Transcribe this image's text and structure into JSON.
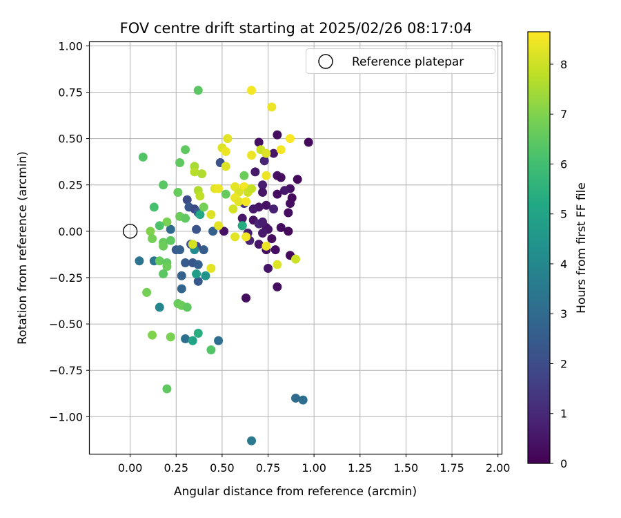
{
  "chart_data": {
    "type": "scatter",
    "title": "FOV centre drift starting at 2025/02/26 08:17:04",
    "xlabel": "Angular distance from reference (arcmin)",
    "ylabel": "Rotation from reference (arcmin)",
    "colorbar_label": "Hours from first FF file",
    "xlim": [
      -0.22,
      2.02
    ],
    "ylim": [
      -1.2,
      1.02
    ],
    "x_ticks": [
      0.0,
      0.25,
      0.5,
      0.75,
      1.0,
      1.25,
      1.5,
      1.75,
      2.0
    ],
    "x_tick_labels": [
      "0.00",
      "0.25",
      "0.50",
      "0.75",
      "1.00",
      "1.25",
      "1.50",
      "1.75",
      "2.00"
    ],
    "y_ticks": [
      1.0,
      0.75,
      0.5,
      0.25,
      0.0,
      -0.25,
      -0.5,
      -0.75,
      -1.0
    ],
    "y_tick_labels": [
      "1.00",
      "0.75",
      "0.50",
      "0.25",
      "0.00",
      "−0.25",
      "−0.50",
      "−0.75",
      "−1.00"
    ],
    "color_range": [
      0,
      8.65
    ],
    "color_ticks": [
      0,
      1,
      2,
      3,
      4,
      5,
      6,
      7,
      8
    ],
    "color_tick_labels": [
      "0",
      "1",
      "2",
      "3",
      "4",
      "5",
      "6",
      "7",
      "8"
    ],
    "colormap": "viridis",
    "grid": true,
    "legend": {
      "placement": "top-right",
      "entries": [
        "Reference platepar"
      ]
    },
    "reference_point": {
      "x": 0.0,
      "y": 0.0
    },
    "points": [
      [
        0.8,
        0.52,
        0.3
      ],
      [
        0.97,
        0.48,
        0.2
      ],
      [
        0.7,
        0.48,
        0.4
      ],
      [
        0.73,
        0.38,
        0.9
      ],
      [
        0.78,
        0.42,
        0.5
      ],
      [
        0.68,
        0.32,
        0.6
      ],
      [
        0.8,
        0.3,
        0.4
      ],
      [
        0.82,
        0.29,
        0.3
      ],
      [
        0.91,
        0.28,
        0.2
      ],
      [
        0.72,
        0.25,
        0.7
      ],
      [
        0.64,
        0.22,
        0.8
      ],
      [
        0.72,
        0.21,
        0.5
      ],
      [
        0.87,
        0.23,
        0.4
      ],
      [
        0.84,
        0.22,
        0.6
      ],
      [
        0.8,
        0.2,
        0.3
      ],
      [
        0.88,
        0.18,
        0.2
      ],
      [
        0.87,
        0.15,
        0.3
      ],
      [
        0.62,
        0.15,
        1.2
      ],
      [
        0.74,
        0.14,
        0.4
      ],
      [
        0.7,
        0.13,
        0.5
      ],
      [
        0.67,
        0.12,
        0.6
      ],
      [
        0.78,
        0.12,
        0.8
      ],
      [
        0.86,
        0.1,
        0.3
      ],
      [
        0.61,
        0.07,
        0.5
      ],
      [
        0.67,
        0.06,
        0.4
      ],
      [
        0.7,
        0.04,
        0.9
      ],
      [
        0.74,
        0.02,
        0.5
      ],
      [
        0.82,
        0.02,
        0.3
      ],
      [
        0.86,
        0.0,
        0.2
      ],
      [
        0.75,
        0.01,
        0.5
      ],
      [
        0.72,
        -0.01,
        0.6
      ],
      [
        0.51,
        0.0,
        0.4
      ],
      [
        0.64,
        -0.01,
        0.7
      ],
      [
        0.77,
        -0.04,
        0.3
      ],
      [
        0.65,
        -0.05,
        0.8
      ],
      [
        0.7,
        -0.07,
        0.5
      ],
      [
        0.74,
        -0.1,
        0.4
      ],
      [
        0.79,
        -0.1,
        0.3
      ],
      [
        0.87,
        -0.13,
        0.2
      ],
      [
        0.75,
        -0.2,
        0.5
      ],
      [
        0.8,
        -0.3,
        0.3
      ],
      [
        0.63,
        -0.36,
        0.3
      ],
      [
        0.61,
        0.03,
        0.9
      ],
      [
        0.72,
        0.05,
        0.7
      ],
      [
        0.49,
        0.37,
        2.1
      ],
      [
        0.31,
        0.17,
        2.0
      ],
      [
        0.32,
        0.13,
        2.3
      ],
      [
        0.35,
        0.12,
        2.0
      ],
      [
        0.37,
        0.1,
        2.5
      ],
      [
        0.36,
        0.01,
        2.2
      ],
      [
        0.33,
        -0.07,
        2.1
      ],
      [
        0.36,
        -0.08,
        1.9
      ],
      [
        0.25,
        -0.1,
        2.4
      ],
      [
        0.27,
        -0.1,
        2.6
      ],
      [
        0.4,
        -0.1,
        2.5
      ],
      [
        0.45,
        0.0,
        2.6
      ],
      [
        0.3,
        -0.17,
        2.5
      ],
      [
        0.34,
        -0.17,
        2.3
      ],
      [
        0.37,
        -0.18,
        2.6
      ],
      [
        0.28,
        -0.24,
        2.7
      ],
      [
        0.37,
        -0.27,
        2.4
      ],
      [
        0.28,
        -0.31,
        2.8
      ],
      [
        0.05,
        -0.16,
        3.3
      ],
      [
        0.13,
        -0.16,
        3.4
      ],
      [
        0.22,
        0.01,
        3.0
      ],
      [
        0.3,
        -0.58,
        3.2
      ],
      [
        0.48,
        -0.59,
        3.1
      ],
      [
        0.9,
        -0.9,
        3.0
      ],
      [
        0.94,
        -0.91,
        3.1
      ],
      [
        0.66,
        -1.13,
        3.5
      ],
      [
        0.35,
        -0.1,
        4.1
      ],
      [
        0.41,
        -0.24,
        4.4
      ],
      [
        0.36,
        -0.23,
        4.8
      ],
      [
        0.34,
        -0.59,
        5.0
      ],
      [
        0.37,
        -0.55,
        5.4
      ],
      [
        0.61,
        0.03,
        5.3
      ],
      [
        0.38,
        0.09,
        5.2
      ],
      [
        0.16,
        -0.41,
        3.9
      ],
      [
        0.13,
        0.13,
        6.1
      ],
      [
        0.18,
        0.25,
        6.4
      ],
      [
        0.07,
        0.4,
        6.3
      ],
      [
        0.3,
        0.44,
        6.5
      ],
      [
        0.37,
        0.76,
        6.4
      ],
      [
        0.27,
        0.37,
        6.5
      ],
      [
        0.26,
        0.21,
        6.6
      ],
      [
        0.4,
        0.13,
        6.8
      ],
      [
        0.27,
        0.08,
        6.7
      ],
      [
        0.3,
        0.07,
        6.5
      ],
      [
        0.2,
        0.05,
        6.9
      ],
      [
        0.16,
        0.03,
        6.2
      ],
      [
        0.11,
        0.0,
        7.0
      ],
      [
        0.12,
        -0.04,
        6.8
      ],
      [
        0.18,
        -0.06,
        6.6
      ],
      [
        0.22,
        -0.05,
        6.5
      ],
      [
        0.18,
        -0.08,
        6.7
      ],
      [
        0.16,
        -0.16,
        6.6
      ],
      [
        0.2,
        -0.17,
        6.5
      ],
      [
        0.2,
        -0.19,
        6.7
      ],
      [
        0.18,
        -0.23,
        6.4
      ],
      [
        0.09,
        -0.33,
        6.8
      ],
      [
        0.26,
        -0.39,
        6.6
      ],
      [
        0.28,
        -0.4,
        6.7
      ],
      [
        0.31,
        -0.41,
        6.5
      ],
      [
        0.12,
        -0.56,
        7.0
      ],
      [
        0.22,
        -0.57,
        6.9
      ],
      [
        0.44,
        -0.64,
        6.3
      ],
      [
        0.2,
        -0.85,
        6.5
      ],
      [
        0.52,
        0.2,
        6.6
      ],
      [
        0.62,
        0.3,
        6.7
      ],
      [
        0.37,
        0.22,
        7.6
      ],
      [
        0.66,
        0.76,
        8.5
      ],
      [
        0.77,
        0.67,
        8.4
      ],
      [
        0.53,
        0.5,
        8.3
      ],
      [
        0.5,
        0.45,
        8.2
      ],
      [
        0.52,
        0.43,
        8.4
      ],
      [
        0.71,
        0.44,
        8.0
      ],
      [
        0.74,
        0.42,
        8.2
      ],
      [
        0.82,
        0.44,
        8.5
      ],
      [
        0.87,
        0.5,
        8.6
      ],
      [
        0.66,
        0.41,
        8.4
      ],
      [
        0.52,
        0.35,
        8.2
      ],
      [
        0.35,
        0.35,
        7.5
      ],
      [
        0.35,
        0.32,
        7.7
      ],
      [
        0.39,
        0.31,
        7.6
      ],
      [
        0.74,
        0.3,
        8.4
      ],
      [
        0.57,
        0.24,
        8.3
      ],
      [
        0.62,
        0.24,
        8.5
      ],
      [
        0.46,
        0.23,
        8.3
      ],
      [
        0.48,
        0.23,
        8.4
      ],
      [
        0.59,
        0.21,
        8.2
      ],
      [
        0.64,
        0.21,
        8.0
      ],
      [
        0.66,
        0.23,
        7.9
      ],
      [
        0.57,
        0.18,
        8.4
      ],
      [
        0.59,
        0.16,
        8.3
      ],
      [
        0.63,
        0.16,
        8.5
      ],
      [
        0.38,
        0.19,
        7.8
      ],
      [
        0.56,
        0.12,
        8.1
      ],
      [
        0.44,
        0.09,
        8.2
      ],
      [
        0.48,
        0.03,
        8.3
      ],
      [
        0.57,
        -0.03,
        8.3
      ],
      [
        0.63,
        -0.03,
        8.5
      ],
      [
        0.34,
        -0.07,
        8.1
      ],
      [
        0.74,
        -0.08,
        8.4
      ],
      [
        0.8,
        -0.18,
        8.2
      ],
      [
        0.9,
        -0.15,
        8.0
      ],
      [
        0.44,
        -0.2,
        8.3
      ]
    ]
  }
}
